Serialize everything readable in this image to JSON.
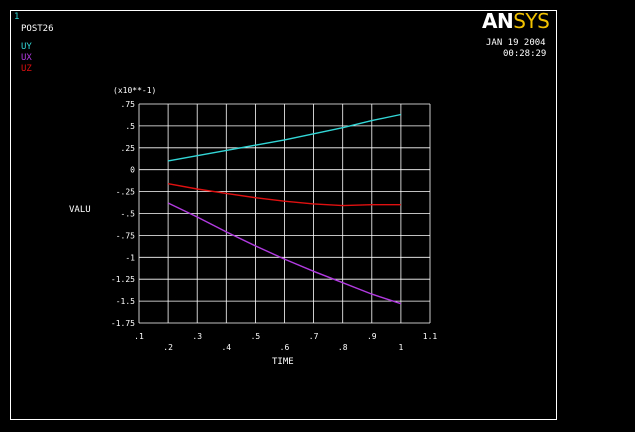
{
  "header": {
    "window_number": "1",
    "processor": "POST26",
    "date": "JAN 19 2004",
    "time": "00:28:29"
  },
  "logo": {
    "part1": "AN",
    "part2": "SYS"
  },
  "colors": {
    "background": "#000000",
    "UY": "#33d6d6",
    "UX": "#b13be0",
    "UZ": "#e01010",
    "grid": "#ffffff"
  },
  "chart_data": {
    "type": "line",
    "xlabel": "TIME",
    "ylabel": "VALU",
    "y_multiplier_label": "(x10**-1)",
    "xlim": [
      0.1,
      1.1
    ],
    "ylim": [
      -1.75,
      0.75
    ],
    "x_ticks": [
      0.1,
      0.2,
      0.3,
      0.4,
      0.5,
      0.6,
      0.7,
      0.8,
      0.9,
      1.0,
      1.1
    ],
    "x_tick_labels": [
      ".1",
      ".2",
      ".3",
      ".4",
      ".5",
      ".6",
      ".7",
      ".8",
      ".9",
      "1",
      "1.1"
    ],
    "y_ticks": [
      0.75,
      0.5,
      0.25,
      0,
      -0.25,
      -0.5,
      -0.75,
      -1,
      -1.25,
      -1.5,
      -1.75
    ],
    "y_tick_labels": [
      ".75",
      ".5",
      ".25",
      "0",
      "-.25",
      "-.5",
      "-.75",
      "-1",
      "-1.25",
      "-1.5",
      "-1.75"
    ],
    "grid": true,
    "legend_placement": "top-left",
    "series": [
      {
        "name": "UY",
        "color": "#33d6d6",
        "x": [
          0.2,
          0.3,
          0.4,
          0.5,
          0.6,
          0.7,
          0.8,
          0.9,
          1.0
        ],
        "y": [
          0.1,
          0.16,
          0.22,
          0.28,
          0.34,
          0.41,
          0.48,
          0.56,
          0.63
        ]
      },
      {
        "name": "UX",
        "color": "#b13be0",
        "x": [
          0.2,
          0.3,
          0.4,
          0.5,
          0.6,
          0.7,
          0.8,
          0.9,
          1.0
        ],
        "y": [
          -0.38,
          -0.54,
          -0.71,
          -0.87,
          -1.02,
          -1.16,
          -1.29,
          -1.42,
          -1.53
        ]
      },
      {
        "name": "UZ",
        "color": "#e01010",
        "x": [
          0.2,
          0.3,
          0.4,
          0.5,
          0.6,
          0.7,
          0.8,
          0.9,
          1.0
        ],
        "y": [
          -0.16,
          -0.22,
          -0.27,
          -0.32,
          -0.36,
          -0.39,
          -0.41,
          -0.4,
          -0.4
        ]
      }
    ]
  }
}
